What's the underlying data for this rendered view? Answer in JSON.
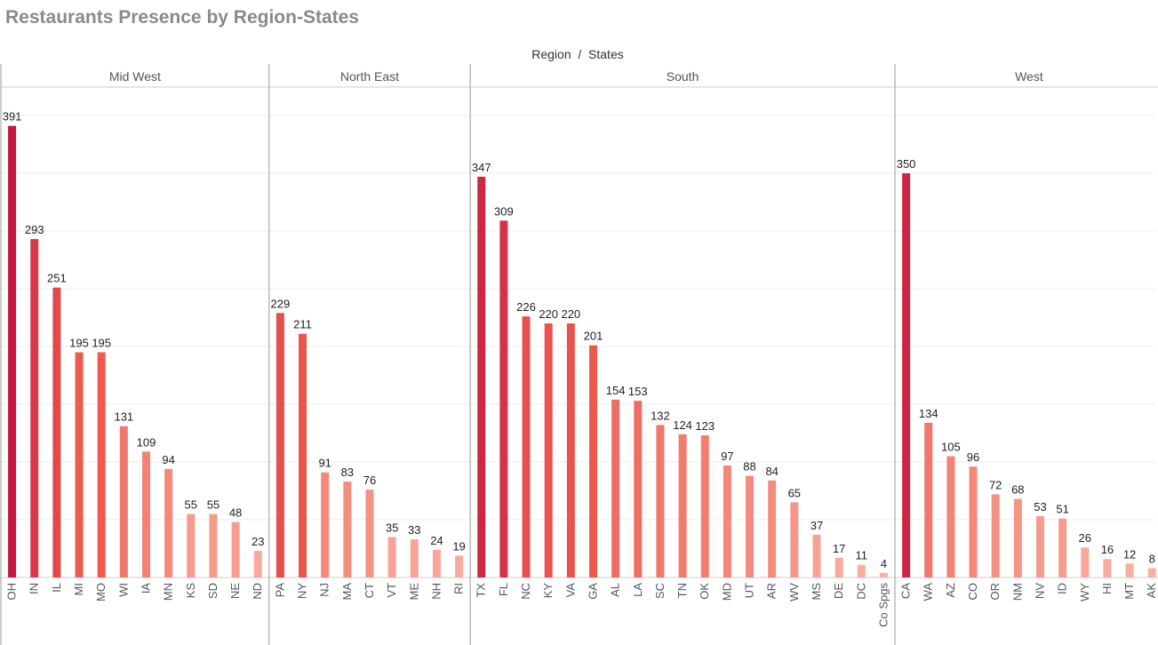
{
  "title": "Restaurants Presence by Region-States",
  "chart_data": {
    "type": "bar",
    "title": "Restaurants Presence by Region-States",
    "facet_header": "Region  /  States",
    "ylim": [
      0,
      400
    ],
    "grid": true,
    "color_scale": {
      "low": "#f9b3a4",
      "mid": "#ef5a4f",
      "high": "#c2183f"
    },
    "panels": [
      {
        "region": "Mid West",
        "categories": [
          "OH",
          "IN",
          "IL",
          "MI",
          "MO",
          "WI",
          "IA",
          "MN",
          "KS",
          "SD",
          "NE",
          "ND"
        ],
        "values": [
          391,
          293,
          251,
          195,
          195,
          131,
          109,
          94,
          55,
          55,
          48,
          23
        ]
      },
      {
        "region": "North East",
        "categories": [
          "PA",
          "NY",
          "NJ",
          "MA",
          "CT",
          "VT",
          "ME",
          "NH",
          "RI"
        ],
        "values": [
          229,
          211,
          91,
          83,
          76,
          35,
          33,
          24,
          19
        ]
      },
      {
        "region": "South",
        "categories": [
          "TX",
          "FL",
          "NC",
          "KY",
          "VA",
          "GA",
          "AL",
          "LA",
          "SC",
          "TN",
          "OK",
          "MD",
          "UT",
          "AR",
          "WV",
          "MS",
          "DE",
          "DC",
          "Co Spgs"
        ],
        "values": [
          347,
          309,
          226,
          220,
          220,
          201,
          154,
          153,
          132,
          124,
          123,
          97,
          88,
          84,
          65,
          37,
          17,
          11,
          4
        ]
      },
      {
        "region": "West",
        "categories": [
          "CA",
          "WA",
          "AZ",
          "CO",
          "OR",
          "NM",
          "NV",
          "ID",
          "WY",
          "HI",
          "MT",
          "AK"
        ],
        "values": [
          350,
          134,
          105,
          96,
          72,
          68,
          53,
          51,
          26,
          16,
          12,
          8
        ]
      }
    ]
  }
}
